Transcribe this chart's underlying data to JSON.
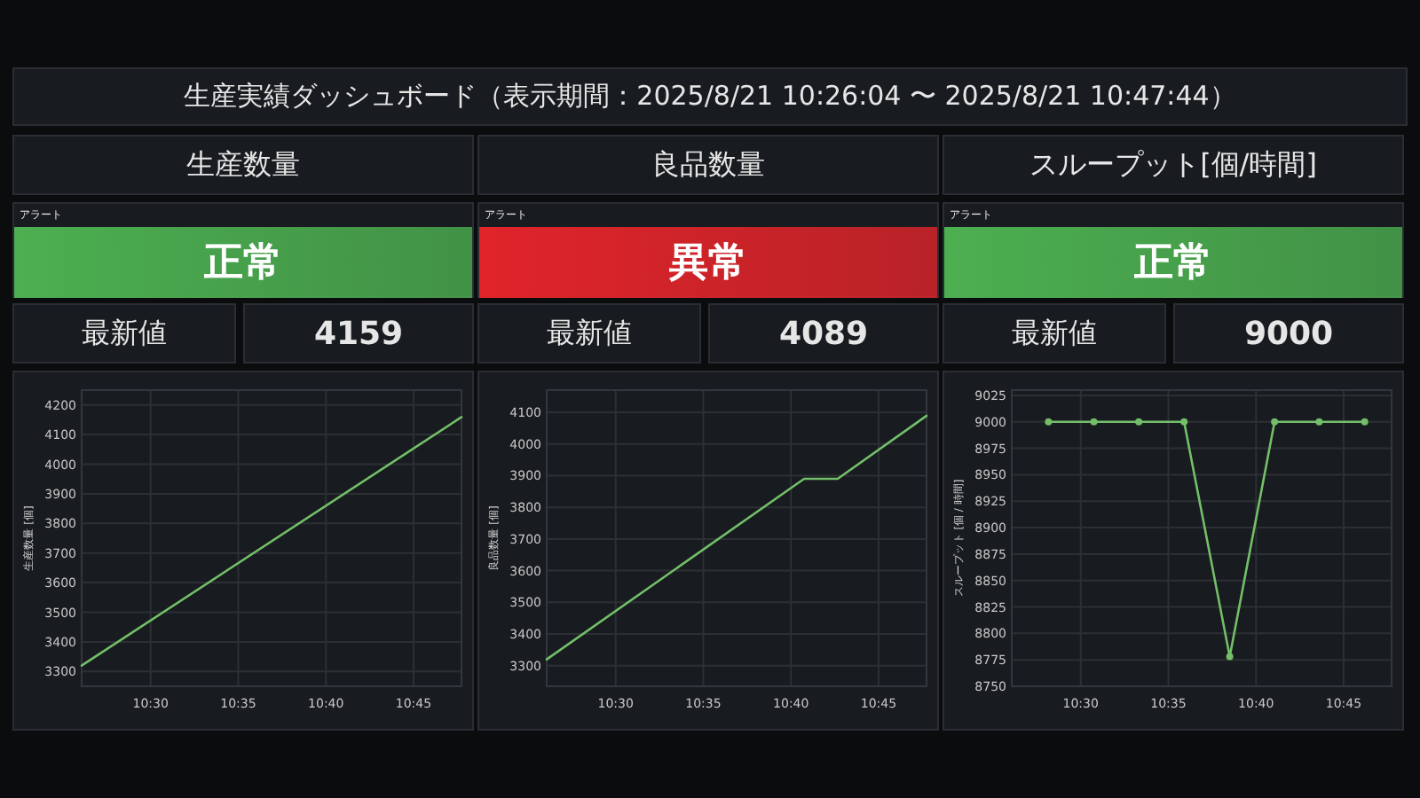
{
  "chart_data": [
    {
      "type": "other",
      "title": "生産実績ダッシュボード（表示期間：2025/8/21 10:26:04 〜 2025/8/21 10:47:44）"
    },
    {
      "type": "other",
      "title": "生産数量",
      "subtitle": "アラート",
      "annotations": [
        "正常",
        "最新値",
        "4159"
      ],
      "color": "#4caf50"
    },
    {
      "type": "line",
      "ylabel": "生産数量 [個]",
      "xlim": [
        10.4344,
        10.7956
      ],
      "ylim": [
        3250,
        4250
      ],
      "xticks": [
        {
          "value": 10.5,
          "label": "10:30"
        },
        {
          "value": 10.5833,
          "label": "10:35"
        },
        {
          "value": 10.6667,
          "label": "10:40"
        },
        {
          "value": 10.75,
          "label": "10:45"
        }
      ],
      "yticks": [
        3300,
        3400,
        3500,
        3600,
        3700,
        3800,
        3900,
        4000,
        4100,
        4200
      ],
      "grid": true,
      "line_style": "solid",
      "series": [
        {
          "color": "#73bf69",
          "x": [
            10.4344,
            10.7956
          ],
          "values": [
            3320,
            4159
          ]
        }
      ]
    },
    {
      "type": "other",
      "title": "良品数量",
      "subtitle": "アラート",
      "annotations": [
        "異常",
        "最新値",
        "4089"
      ],
      "color": "#e0242a"
    },
    {
      "type": "line",
      "ylabel": "良品数量 [個]",
      "xlim": [
        10.4344,
        10.7956
      ],
      "ylim": [
        3235,
        4170
      ],
      "xticks": [
        {
          "value": 10.5,
          "label": "10:30"
        },
        {
          "value": 10.5833,
          "label": "10:35"
        },
        {
          "value": 10.6667,
          "label": "10:40"
        },
        {
          "value": 10.75,
          "label": "10:45"
        }
      ],
      "yticks": [
        3300,
        3400,
        3500,
        3600,
        3700,
        3800,
        3900,
        4000,
        4100
      ],
      "grid": true,
      "line_style": "solid",
      "series": [
        {
          "color": "#73bf69",
          "x": [
            10.4344,
            10.6792,
            10.7111,
            10.7956
          ],
          "values": [
            3320,
            3890,
            3890,
            4089
          ]
        }
      ]
    },
    {
      "type": "other",
      "title": "スループット[個/時間]",
      "subtitle": "アラート",
      "annotations": [
        "正常",
        "最新値",
        "9000"
      ],
      "color": "#4caf50"
    },
    {
      "type": "line",
      "ylabel": "スループット [個 / 時間]",
      "xlim": [
        10.4344,
        10.7956
      ],
      "ylim": [
        8750,
        9030
      ],
      "xticks": [
        {
          "value": 10.5,
          "label": "10:30"
        },
        {
          "value": 10.5833,
          "label": "10:35"
        },
        {
          "value": 10.6667,
          "label": "10:40"
        },
        {
          "value": 10.75,
          "label": "10:45"
        }
      ],
      "yticks": [
        8750,
        8775,
        8800,
        8825,
        8850,
        8875,
        8900,
        8925,
        8950,
        8975,
        9000,
        9025
      ],
      "grid": true,
      "line_style": "solid",
      "marker": "circle",
      "series": [
        {
          "color": "#73bf69",
          "x": [
            10.4693,
            10.5125,
            10.5552,
            10.5983,
            10.6417,
            10.6843,
            10.7267,
            10.77
          ],
          "values": [
            9000,
            9000,
            9000,
            9000,
            8778,
            9000,
            9000,
            9000
          ]
        }
      ]
    }
  ]
}
